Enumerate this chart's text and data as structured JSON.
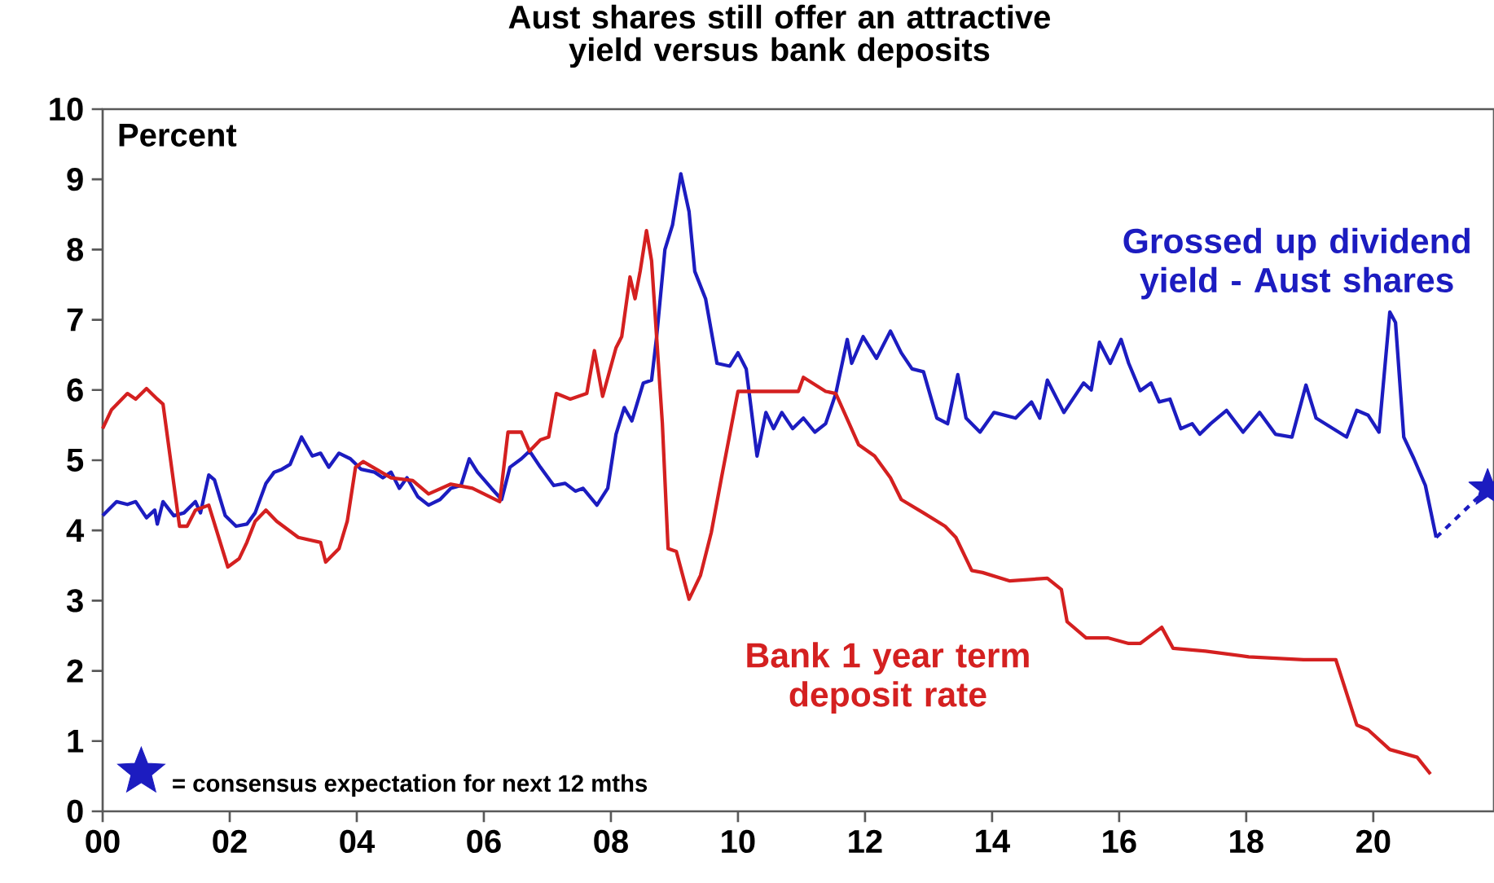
{
  "chart_data": {
    "type": "line",
    "title": "Aust shares still offer an attractive yield versus bank deposits",
    "ylabel": "Percent",
    "xlim": [
      0,
      21.9
    ],
    "ylim": [
      0,
      10
    ],
    "xticks": [
      {
        "value": 0,
        "label": "00"
      },
      {
        "value": 2,
        "label": "02"
      },
      {
        "value": 4,
        "label": "04"
      },
      {
        "value": 6,
        "label": "06"
      },
      {
        "value": 8,
        "label": "08"
      },
      {
        "value": 10,
        "label": "10"
      },
      {
        "value": 12,
        "label": "12"
      },
      {
        "value": 14,
        "label": "14"
      },
      {
        "value": 16,
        "label": "16"
      },
      {
        "value": 18,
        "label": "18"
      },
      {
        "value": 20,
        "label": "20"
      }
    ],
    "yticks": [
      0,
      1,
      2,
      3,
      4,
      5,
      6,
      7,
      8,
      9,
      10
    ],
    "legend": false,
    "grid": false,
    "annotations": [
      "= consensus expectation for next 12 mths"
    ],
    "series": [
      {
        "name": "Grossed up dividend yield - Aust shares",
        "color": "#1c1cc0",
        "x": [
          0,
          0.22,
          0.39,
          0.52,
          0.69,
          0.82,
          0.86,
          0.95,
          1.12,
          1.28,
          1.46,
          1.54,
          1.67,
          1.76,
          1.93,
          2.1,
          2.27,
          2.4,
          2.57,
          2.7,
          2.82,
          2.95,
          3.13,
          3.3,
          3.43,
          3.56,
          3.72,
          3.9,
          4.07,
          4.28,
          4.41,
          4.54,
          4.67,
          4.79,
          4.96,
          5.13,
          5.31,
          5.48,
          5.64,
          5.77,
          5.9,
          6.12,
          6.28,
          6.41,
          6.59,
          6.72,
          6.89,
          7.1,
          7.28,
          7.44,
          7.56,
          7.78,
          7.95,
          8.08,
          8.21,
          8.33,
          8.51,
          8.64,
          8.72,
          8.85,
          8.97,
          9.1,
          9.23,
          9.32,
          9.49,
          9.67,
          9.87,
          10.0,
          10.13,
          10.3,
          10.44,
          10.56,
          10.69,
          10.86,
          11.03,
          11.21,
          11.38,
          11.54,
          11.72,
          11.79,
          11.97,
          12.18,
          12.4,
          12.57,
          12.74,
          12.92,
          13.13,
          13.3,
          13.46,
          13.59,
          13.81,
          14.03,
          14.37,
          14.62,
          14.75,
          14.87,
          15.13,
          15.44,
          15.56,
          15.69,
          15.86,
          16.03,
          16.15,
          16.33,
          16.5,
          16.63,
          16.8,
          16.97,
          17.15,
          17.27,
          17.44,
          17.69,
          17.95,
          18.21,
          18.46,
          18.72,
          18.94,
          19.1,
          19.58,
          19.74,
          19.92,
          20.09,
          20.26,
          20.35,
          20.48,
          20.64,
          20.82,
          20.99
        ],
        "values": [
          4.21,
          4.41,
          4.37,
          4.41,
          4.18,
          4.29,
          4.09,
          4.41,
          4.21,
          4.25,
          4.41,
          4.25,
          4.79,
          4.72,
          4.21,
          4.06,
          4.09,
          4.25,
          4.67,
          4.83,
          4.87,
          4.94,
          5.33,
          5.06,
          5.1,
          4.9,
          5.1,
          5.02,
          4.87,
          4.83,
          4.75,
          4.83,
          4.6,
          4.75,
          4.48,
          4.36,
          4.44,
          4.6,
          4.64,
          5.02,
          4.83,
          4.6,
          4.44,
          4.9,
          5.02,
          5.13,
          4.9,
          4.64,
          4.67,
          4.56,
          4.6,
          4.36,
          4.6,
          5.37,
          5.75,
          5.56,
          6.1,
          6.14,
          6.76,
          8.0,
          8.35,
          9.08,
          8.54,
          7.69,
          7.3,
          6.38,
          6.34,
          6.53,
          6.3,
          5.06,
          5.68,
          5.45,
          5.68,
          5.45,
          5.6,
          5.4,
          5.52,
          5.95,
          6.72,
          6.38,
          6.76,
          6.45,
          6.84,
          6.53,
          6.3,
          6.26,
          5.6,
          5.52,
          6.22,
          5.6,
          5.4,
          5.68,
          5.6,
          5.83,
          5.6,
          6.14,
          5.68,
          6.1,
          6.0,
          6.68,
          6.38,
          6.72,
          6.38,
          5.99,
          6.1,
          5.83,
          5.87,
          5.45,
          5.52,
          5.37,
          5.52,
          5.71,
          5.4,
          5.68,
          5.37,
          5.33,
          6.07,
          5.6,
          5.33,
          5.71,
          5.64,
          5.4,
          7.11,
          6.96,
          5.33,
          5.02,
          4.64,
          3.9
        ]
      },
      {
        "name": "Bank 1 year term deposit rate",
        "color": "#d42020",
        "x": [
          0,
          0.14,
          0.39,
          0.52,
          0.69,
          0.86,
          0.95,
          1.21,
          1.33,
          1.46,
          1.67,
          1.97,
          2.15,
          2.27,
          2.4,
          2.57,
          2.74,
          3.08,
          3.43,
          3.51,
          3.72,
          3.85,
          3.98,
          4.1,
          4.54,
          4.88,
          5.13,
          5.48,
          5.82,
          6.25,
          6.38,
          6.59,
          6.72,
          6.89,
          7.02,
          7.14,
          7.36,
          7.62,
          7.74,
          7.87,
          8.08,
          8.17,
          8.3,
          8.38,
          8.46,
          8.56,
          8.64,
          8.81,
          8.9,
          9.03,
          9.23,
          9.41,
          9.58,
          9.74,
          10.0,
          10.95,
          11.03,
          11.38,
          11.54,
          11.9,
          12.15,
          12.4,
          12.57,
          12.92,
          13.26,
          13.43,
          13.68,
          13.85,
          14.28,
          14.87,
          15.09,
          15.18,
          15.48,
          15.82,
          16.15,
          16.33,
          16.67,
          16.85,
          17.36,
          18.04,
          18.9,
          19.41,
          19.74,
          19.92,
          20.26,
          20.69,
          20.9
        ],
        "values": [
          5.45,
          5.72,
          5.95,
          5.87,
          6.02,
          5.87,
          5.8,
          4.06,
          4.06,
          4.29,
          4.36,
          3.48,
          3.6,
          3.83,
          4.13,
          4.29,
          4.13,
          3.9,
          3.83,
          3.55,
          3.74,
          4.13,
          4.9,
          4.98,
          4.75,
          4.71,
          4.52,
          4.66,
          4.6,
          4.41,
          5.4,
          5.4,
          5.13,
          5.29,
          5.33,
          5.95,
          5.87,
          5.95,
          6.56,
          5.91,
          6.6,
          6.76,
          7.61,
          7.3,
          7.69,
          8.27,
          7.84,
          5.52,
          3.74,
          3.7,
          3.02,
          3.36,
          3.97,
          4.75,
          5.98,
          5.98,
          6.18,
          5.98,
          5.95,
          5.22,
          5.06,
          4.75,
          4.44,
          4.25,
          4.06,
          3.9,
          3.43,
          3.4,
          3.28,
          3.32,
          3.16,
          2.7,
          2.47,
          2.47,
          2.39,
          2.39,
          2.62,
          2.32,
          2.28,
          2.2,
          2.16,
          2.16,
          1.23,
          1.16,
          0.88,
          0.77,
          0.53
        ]
      },
      {
        "color": "#1c1cc0",
        "line_style": "dashed",
        "x": [
          20.99,
          21.8
        ],
        "values": [
          3.9,
          4.6
        ]
      },
      {
        "type": "scatter",
        "marker": "star",
        "color": "#1c1cc0",
        "x": [
          21.8
        ],
        "values": [
          4.6
        ]
      }
    ]
  }
}
